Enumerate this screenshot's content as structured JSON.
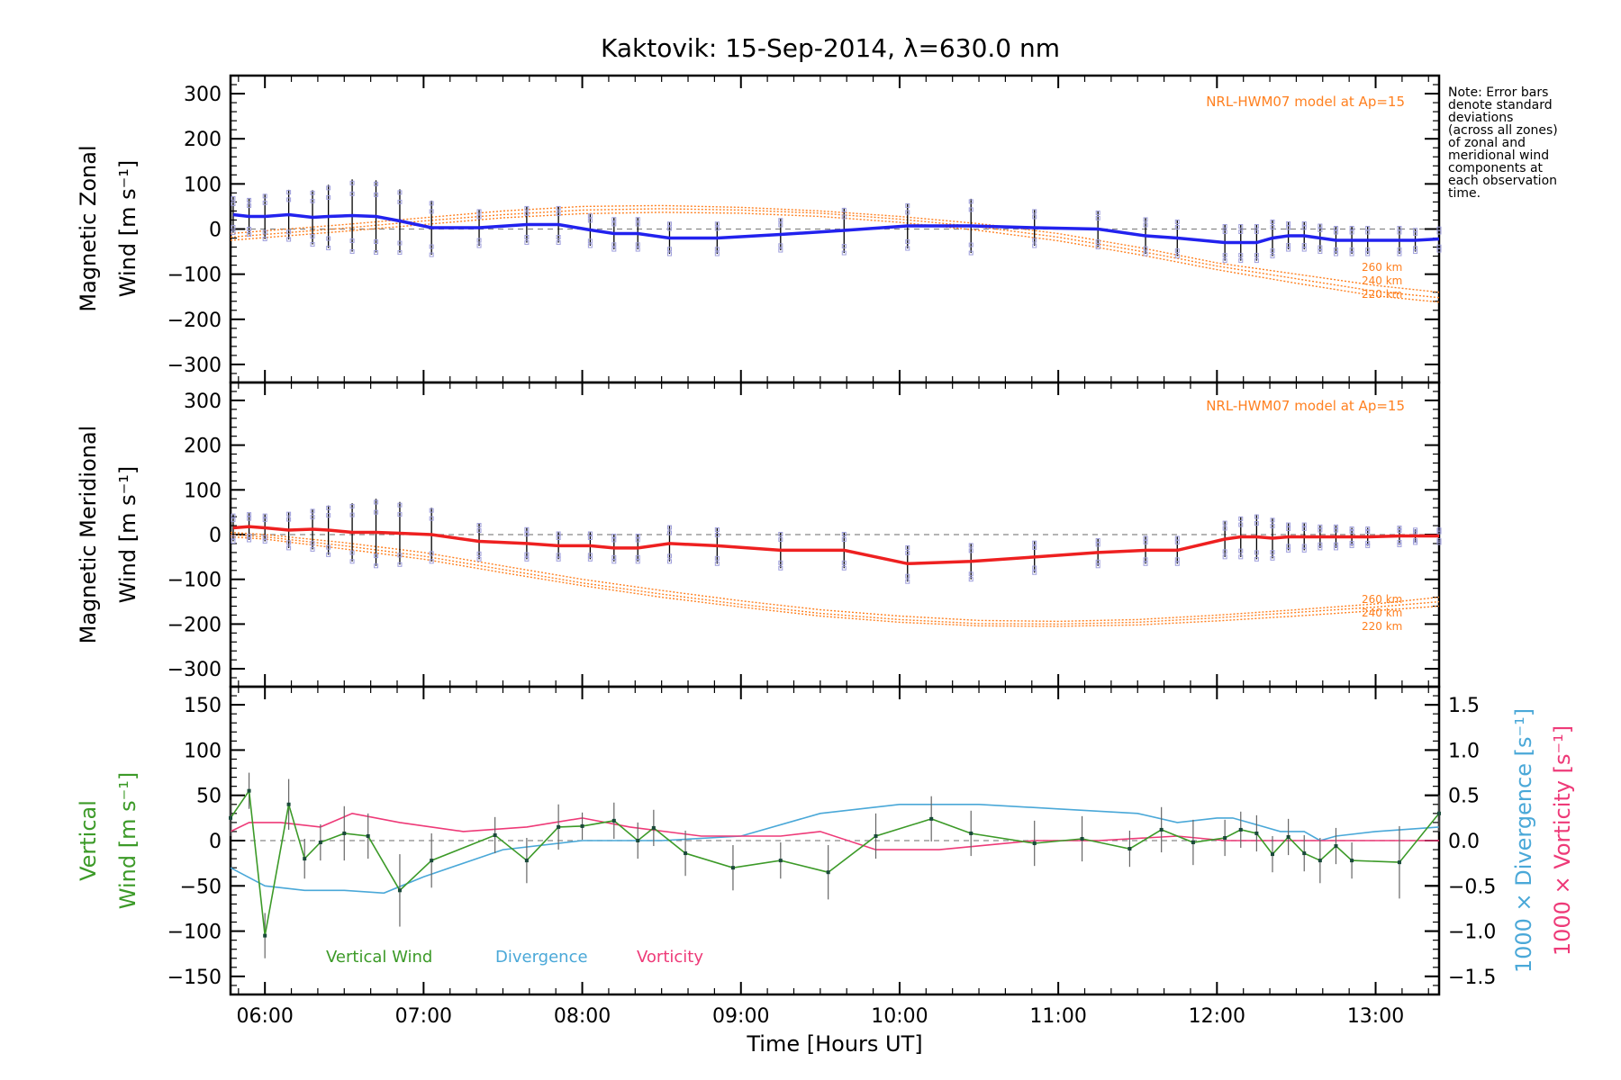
{
  "chart_data": {
    "type": "line",
    "title": "Kaktovik: 15-Sep-2014, λ=630.0 nm",
    "xlabel": "Time [Hours UT]",
    "xlim": [
      "05:47",
      "13:24"
    ],
    "x_ticks": [
      "06:00",
      "07:00",
      "08:00",
      "09:00",
      "10:00",
      "11:00",
      "12:00",
      "13:00"
    ],
    "note": [
      "Note: Error bars",
      "denote standard",
      "deviations",
      "(across all zones)",
      "of zonal and",
      "meridional wind",
      "components at",
      "each observation",
      "time."
    ],
    "colors": {
      "zonal": "#2222ee",
      "meridional": "#ee2020",
      "model": "#ff8020",
      "vertical": "#3c9a28",
      "divergence": "#4aa8d8",
      "vorticity": "#ee3a78",
      "scatter": "#9f9fdc",
      "errorbar": "#000000",
      "zero_line": "#888888"
    },
    "panels": [
      {
        "id": "zonal",
        "ylabel_line1": "Magnetic Zonal",
        "ylabel_line2": "Wind [m s⁻¹]",
        "ylim": [
          -340,
          340
        ],
        "y_ticks": [
          300,
          200,
          100,
          0,
          -100,
          -200,
          -300
        ],
        "model_label": "NRL-HWM07 model at Ap=15",
        "model_curve_labels": [
          "260 km",
          "240 km",
          "220 km"
        ],
        "series": [
          {
            "name": "Magnetic Zonal Wind",
            "x": [
              "05:48",
              "05:54",
              "06:00",
              "06:09",
              "06:18",
              "06:24",
              "06:33",
              "06:42",
              "06:51",
              "07:03",
              "07:21",
              "07:39",
              "07:51",
              "08:03",
              "08:12",
              "08:21",
              "08:33",
              "08:51",
              "09:15",
              "09:39",
              "10:03",
              "10:27",
              "10:51",
              "11:15",
              "11:33",
              "11:45",
              "12:03",
              "12:09",
              "12:15",
              "12:21",
              "12:27",
              "12:33",
              "12:39",
              "12:45",
              "12:51",
              "12:57",
              "13:09",
              "13:15",
              "13:24"
            ],
            "y": [
              32,
              28,
              28,
              32,
              26,
              28,
              30,
              28,
              18,
              3,
              3,
              10,
              10,
              -2,
              -10,
              -10,
              -20,
              -20,
              -12,
              -3,
              7,
              7,
              3,
              0,
              -15,
              -20,
              -30,
              -30,
              -30,
              -20,
              -15,
              -15,
              -20,
              -25,
              -25,
              -25,
              -25,
              -25,
              -22
            ],
            "err": [
              40,
              40,
              50,
              55,
              60,
              70,
              80,
              80,
              70,
              60,
              40,
              40,
              40,
              35,
              35,
              35,
              35,
              35,
              35,
              50,
              50,
              60,
              40,
              40,
              40,
              40,
              40,
              40,
              40,
              40,
              30,
              30,
              30,
              30,
              30,
              30,
              30,
              25,
              25
            ]
          }
        ],
        "model_curves": [
          {
            "name": "260 km",
            "x": [
              "05:47",
              "06:30",
              "07:00",
              "07:30",
              "08:00",
              "08:30",
              "09:00",
              "09:30",
              "10:00",
              "10:30",
              "11:00",
              "11:30",
              "12:00",
              "12:30",
              "13:00",
              "13:24"
            ],
            "y": [
              -10,
              10,
              25,
              40,
              50,
              52,
              48,
              40,
              28,
              12,
              -10,
              -40,
              -75,
              -100,
              -125,
              -140
            ]
          },
          {
            "name": "240 km",
            "x": [
              "05:47",
              "06:30",
              "07:00",
              "07:30",
              "08:00",
              "08:30",
              "09:00",
              "09:30",
              "10:00",
              "10:30",
              "11:00",
              "11:30",
              "12:00",
              "12:30",
              "13:00",
              "13:24"
            ],
            "y": [
              -18,
              2,
              18,
              32,
              42,
              45,
              42,
              35,
              22,
              5,
              -18,
              -48,
              -82,
              -110,
              -138,
              -152
            ]
          },
          {
            "name": "220 km",
            "x": [
              "05:47",
              "06:30",
              "07:00",
              "07:30",
              "08:00",
              "08:30",
              "09:00",
              "09:30",
              "10:00",
              "10:30",
              "11:00",
              "11:30",
              "12:00",
              "12:30",
              "13:00",
              "13:24"
            ],
            "y": [
              -25,
              -5,
              10,
              25,
              34,
              37,
              35,
              28,
              15,
              -3,
              -26,
              -56,
              -90,
              -120,
              -148,
              -162
            ]
          }
        ]
      },
      {
        "id": "meridional",
        "ylabel_line1": "Magnetic Meridional",
        "ylabel_line2": "Wind [m s⁻¹]",
        "ylim": [
          -340,
          340
        ],
        "y_ticks": [
          300,
          200,
          100,
          0,
          -100,
          -200,
          -300
        ],
        "model_label": "NRL-HWM07 model at Ap=15",
        "model_curve_labels": [
          "260 km",
          "240 km",
          "220 km"
        ],
        "series": [
          {
            "name": "Magnetic Meridional Wind",
            "x": [
              "05:48",
              "05:54",
              "06:00",
              "06:09",
              "06:18",
              "06:24",
              "06:33",
              "06:42",
              "06:51",
              "07:03",
              "07:21",
              "07:39",
              "07:51",
              "08:03",
              "08:12",
              "08:21",
              "08:33",
              "08:51",
              "09:15",
              "09:39",
              "10:03",
              "10:27",
              "10:51",
              "11:15",
              "11:33",
              "11:45",
              "12:03",
              "12:09",
              "12:15",
              "12:21",
              "12:27",
              "12:33",
              "12:39",
              "12:45",
              "12:51",
              "12:57",
              "13:09",
              "13:15",
              "13:24"
            ],
            "y": [
              15,
              18,
              15,
              10,
              12,
              10,
              5,
              5,
              3,
              0,
              -15,
              -20,
              -25,
              -25,
              -30,
              -30,
              -20,
              -25,
              -35,
              -35,
              -65,
              -60,
              -50,
              -40,
              -35,
              -35,
              -10,
              -5,
              -5,
              -8,
              -5,
              -5,
              -5,
              -5,
              -5,
              -5,
              -3,
              -3,
              -3
            ],
            "err": [
              30,
              30,
              30,
              40,
              45,
              55,
              65,
              75,
              70,
              60,
              40,
              35,
              30,
              30,
              30,
              30,
              40,
              40,
              40,
              40,
              40,
              40,
              35,
              30,
              30,
              30,
              40,
              45,
              50,
              45,
              30,
              30,
              25,
              25,
              20,
              20,
              20,
              15,
              15
            ]
          }
        ],
        "model_curves": [
          {
            "name": "260 km",
            "x": [
              "05:47",
              "06:00",
              "06:30",
              "07:00",
              "07:30",
              "08:00",
              "08:30",
              "09:00",
              "09:30",
              "10:00",
              "10:30",
              "11:00",
              "11:30",
              "12:00",
              "12:30",
              "13:00",
              "13:24"
            ],
            "y": [
              5,
              0,
              -18,
              -40,
              -70,
              -100,
              -125,
              -148,
              -168,
              -182,
              -192,
              -194,
              -190,
              -180,
              -168,
              -155,
              -140
            ]
          },
          {
            "name": "240 km",
            "x": [
              "05:47",
              "06:00",
              "06:30",
              "07:00",
              "07:30",
              "08:00",
              "08:30",
              "09:00",
              "09:30",
              "10:00",
              "10:30",
              "11:00",
              "11:30",
              "12:00",
              "12:30",
              "13:00",
              "13:24"
            ],
            "y": [
              0,
              -5,
              -25,
              -48,
              -78,
              -108,
              -133,
              -156,
              -176,
              -190,
              -199,
              -200,
              -196,
              -186,
              -174,
              -162,
              -150
            ]
          },
          {
            "name": "220 km",
            "x": [
              "05:47",
              "06:00",
              "06:30",
              "07:00",
              "07:30",
              "08:00",
              "08:30",
              "09:00",
              "09:30",
              "10:00",
              "10:30",
              "11:00",
              "11:30",
              "12:00",
              "12:30",
              "13:00",
              "13:24"
            ],
            "y": [
              -5,
              -10,
              -32,
              -55,
              -85,
              -114,
              -140,
              -162,
              -182,
              -196,
              -204,
              -205,
              -202,
              -193,
              -182,
              -170,
              -160
            ]
          }
        ]
      },
      {
        "id": "vertical",
        "ylabel_line1": "Vertical",
        "ylabel_line2": "Wind [m s⁻¹]",
        "ylim": [
          -170,
          170
        ],
        "y_ticks": [
          150,
          100,
          50,
          0,
          -50,
          -100,
          -150
        ],
        "y2_ticks": [
          "1.5",
          "1.0",
          "0.5",
          "0.0",
          "−0.5",
          "−1.0",
          "−1.5"
        ],
        "y2_tick_values": [
          1.5,
          1.0,
          0.5,
          0.0,
          -0.5,
          -1.0,
          -1.5
        ],
        "y2lim": [
          -1.7,
          1.7
        ],
        "y2label_divergence": "1000 × Divergence [s⁻¹]",
        "y2label_vorticity": "1000 × Vorticity [s⁻¹]",
        "legend": [
          "Vertical Wind",
          "Divergence",
          "Vorticity"
        ],
        "series": [
          {
            "name": "Vertical Wind",
            "x": [
              "05:47",
              "05:54",
              "06:00",
              "06:09",
              "06:15",
              "06:21",
              "06:30",
              "06:39",
              "06:51",
              "07:03",
              "07:27",
              "07:39",
              "07:51",
              "08:00",
              "08:12",
              "08:21",
              "08:27",
              "08:39",
              "08:57",
              "09:15",
              "09:33",
              "09:51",
              "10:12",
              "10:27",
              "10:51",
              "11:09",
              "11:27",
              "11:39",
              "11:51",
              "12:03",
              "12:09",
              "12:15",
              "12:21",
              "12:27",
              "12:33",
              "12:39",
              "12:45",
              "12:51",
              "13:09",
              "13:24"
            ],
            "y": [
              25,
              55,
              -105,
              40,
              -20,
              -2,
              8,
              5,
              -55,
              -22,
              6,
              -22,
              15,
              16,
              22,
              0,
              14,
              -14,
              -30,
              -22,
              -35,
              5,
              24,
              8,
              -3,
              2,
              -9,
              12,
              -2,
              3,
              12,
              8,
              -15,
              4,
              -14,
              -22,
              -6,
              -22,
              -24,
              30
            ],
            "err": [
              20,
              20,
              25,
              28,
              22,
              20,
              30,
              25,
              40,
              30,
              20,
              25,
              25,
              15,
              20,
              20,
              20,
              25,
              25,
              20,
              30,
              25,
              25,
              25,
              25,
              25,
              20,
              25,
              25,
              20,
              20,
              20,
              20,
              20,
              20,
              25,
              20,
              20,
              40,
              20
            ]
          },
          {
            "name": "Divergence",
            "axis": "y2",
            "x": [
              "05:47",
              "06:00",
              "06:15",
              "06:30",
              "06:45",
              "07:00",
              "07:30",
              "08:00",
              "08:30",
              "09:00",
              "09:30",
              "10:00",
              "10:30",
              "11:00",
              "11:30",
              "11:45",
              "12:00",
              "12:06",
              "12:12",
              "12:24",
              "12:33",
              "12:39",
              "12:45",
              "13:00",
              "13:24"
            ],
            "y": [
              -0.3,
              -0.5,
              -0.55,
              -0.55,
              -0.58,
              -0.4,
              -0.1,
              0.0,
              0.0,
              0.05,
              0.3,
              0.4,
              0.4,
              0.35,
              0.3,
              0.2,
              0.25,
              0.25,
              0.2,
              0.1,
              0.1,
              0.0,
              0.05,
              0.1,
              0.15
            ]
          },
          {
            "name": "Vorticity",
            "axis": "y2",
            "x": [
              "05:47",
              "05:54",
              "06:06",
              "06:21",
              "06:33",
              "06:51",
              "07:15",
              "07:39",
              "08:00",
              "08:18",
              "08:45",
              "09:15",
              "09:30",
              "09:51",
              "10:15",
              "10:51",
              "11:15",
              "11:45",
              "12:03",
              "12:15",
              "12:33",
              "12:51",
              "13:09",
              "13:24"
            ],
            "y": [
              0.1,
              0.2,
              0.2,
              0.15,
              0.3,
              0.2,
              0.1,
              0.15,
              0.25,
              0.15,
              0.05,
              0.05,
              0.1,
              -0.1,
              -0.1,
              0.0,
              0.0,
              0.05,
              0.0,
              0.0,
              0.0,
              0.0,
              0.0,
              0.0
            ]
          }
        ]
      }
    ]
  }
}
